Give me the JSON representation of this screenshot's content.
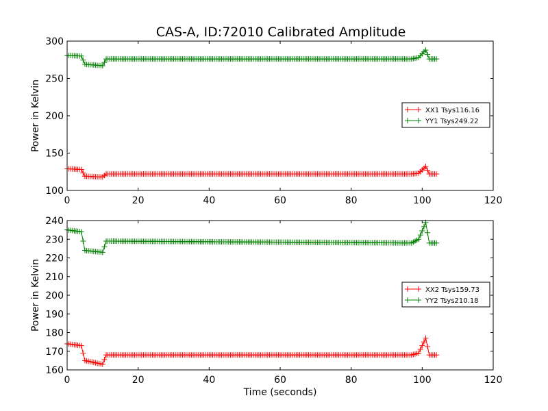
{
  "title": "CAS-A, ID:72010 Calibrated Amplitude",
  "chart_data": [
    {
      "type": "line",
      "ylabel": "Power in Kelvin",
      "xlabel": "",
      "xlim": [
        0,
        120
      ],
      "ylim": [
        100,
        300
      ],
      "xticks": [
        0,
        20,
        40,
        60,
        80,
        100,
        120
      ],
      "yticks": [
        100,
        150,
        200,
        250,
        300
      ],
      "legend": "center-right",
      "x": [
        0,
        4,
        5,
        10,
        11,
        97,
        99,
        101,
        102,
        104
      ],
      "series": [
        {
          "name": "XX1 Tsys116.16",
          "color": "#ff0000",
          "marker": "+",
          "values": [
            129,
            128,
            119,
            118,
            122,
            122,
            123,
            132,
            122,
            122
          ]
        },
        {
          "name": "YY1 Tsys249.22",
          "color": "#008000",
          "marker": "+",
          "values": [
            281,
            280,
            269,
            267,
            276,
            276,
            278,
            288,
            276,
            276
          ]
        }
      ]
    },
    {
      "type": "line",
      "ylabel": "Power in Kelvin",
      "xlabel": "Time (seconds)",
      "xlim": [
        0,
        120
      ],
      "ylim": [
        160,
        240
      ],
      "xticks": [
        0,
        20,
        40,
        60,
        80,
        100,
        120
      ],
      "yticks": [
        160,
        170,
        180,
        190,
        200,
        210,
        220,
        230,
        240
      ],
      "legend": "center-right",
      "x": [
        0,
        4,
        5,
        10,
        11,
        97,
        99,
        101,
        102,
        104
      ],
      "series": [
        {
          "name": "XX2 Tsys159.73",
          "color": "#ff0000",
          "marker": "+",
          "values": [
            174,
            173,
            165,
            163,
            168,
            168,
            169,
            177,
            168,
            168
          ]
        },
        {
          "name": "YY2 Tsys210.18",
          "color": "#008000",
          "marker": "+",
          "values": [
            235,
            234,
            224,
            223,
            229,
            228,
            230,
            239,
            228,
            228
          ]
        }
      ]
    }
  ]
}
